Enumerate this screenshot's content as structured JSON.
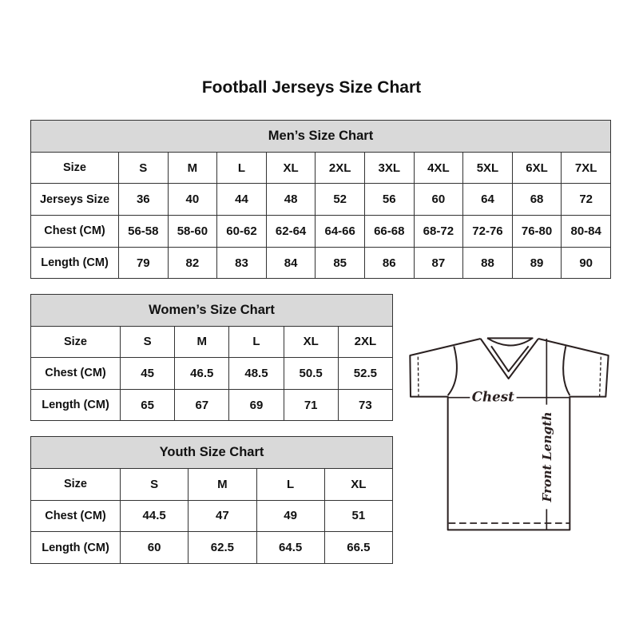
{
  "title": "Football Jerseys Size Chart",
  "men": {
    "heading": "Men’s Size Chart",
    "rows": [
      {
        "label": "Size",
        "values": [
          "S",
          "M",
          "L",
          "XL",
          "2XL",
          "3XL",
          "4XL",
          "5XL",
          "6XL",
          "7XL"
        ]
      },
      {
        "label": "Jerseys Size",
        "values": [
          "36",
          "40",
          "44",
          "48",
          "52",
          "56",
          "60",
          "64",
          "68",
          "72"
        ]
      },
      {
        "label": "Chest (CM)",
        "values": [
          "56-58",
          "58-60",
          "60-62",
          "62-64",
          "64-66",
          "66-68",
          "68-72",
          "72-76",
          "76-80",
          "80-84"
        ]
      },
      {
        "label": "Length (CM)",
        "values": [
          "79",
          "82",
          "83",
          "84",
          "85",
          "86",
          "87",
          "88",
          "89",
          "90"
        ]
      }
    ]
  },
  "women": {
    "heading": "Women’s Size Chart",
    "rows": [
      {
        "label": "Size",
        "values": [
          "S",
          "M",
          "L",
          "XL",
          "2XL"
        ]
      },
      {
        "label": "Chest (CM)",
        "values": [
          "45",
          "46.5",
          "48.5",
          "50.5",
          "52.5"
        ]
      },
      {
        "label": "Length (CM)",
        "values": [
          "65",
          "67",
          "69",
          "71",
          "73"
        ]
      }
    ]
  },
  "youth": {
    "heading": "Youth Size Chart",
    "rows": [
      {
        "label": "Size",
        "values": [
          "S",
          "M",
          "L",
          "XL"
        ]
      },
      {
        "label": "Chest (CM)",
        "values": [
          "44.5",
          "47",
          "49",
          "51"
        ]
      },
      {
        "label": "Length (CM)",
        "values": [
          "60",
          "62.5",
          "64.5",
          "66.5"
        ]
      }
    ]
  },
  "diagram": {
    "chest_label": "Chest",
    "length_label": "Front Length"
  },
  "colors": {
    "header_bg": "#d9d9d9",
    "border": "#333333"
  }
}
